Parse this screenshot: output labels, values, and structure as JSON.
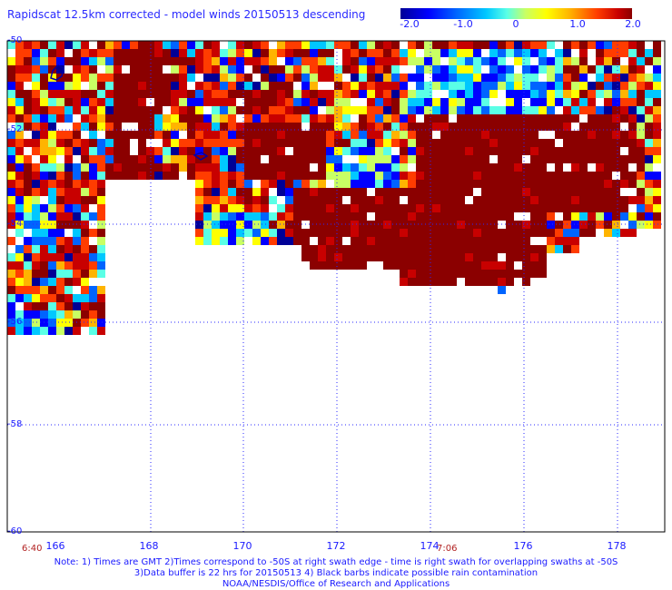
{
  "title": "Rapidscat 12.5km corrected - model winds 20150513 descending",
  "colorbar": {
    "ticks": [
      "-2.0",
      "-1.0",
      "0",
      "1.0",
      "2.0"
    ],
    "min": -2.0,
    "max": 2.0
  },
  "map": {
    "lat_labels": [
      "-50",
      "-52",
      "-54",
      "-56",
      "-58",
      "-60"
    ],
    "lon_labels": [
      "166",
      "168",
      "170",
      "172",
      "174",
      "176",
      "178"
    ],
    "lat_range": [
      -60,
      -50
    ],
    "lon_range": [
      165,
      179
    ],
    "time_marks": [
      "6:40",
      "7:06"
    ]
  },
  "notes": {
    "line1": "Note: 1) Times are GMT 2)Times correspond to -50S at right swath edge - time is right swath for overlapping swaths at -50S",
    "line2": "3)Data buffer is 22 hrs for 20150513 4) Black barbs indicate possible rain contamination",
    "line3": "NOAA/NESDIS/Office of Research and Applications"
  },
  "palette": [
    "#000096",
    "#0000ff",
    "#0064ff",
    "#00c8ff",
    "#5affe6",
    "#c8ff64",
    "#ffff00",
    "#ffb400",
    "#ff3c00",
    "#c80000",
    "#8b0000"
  ]
}
